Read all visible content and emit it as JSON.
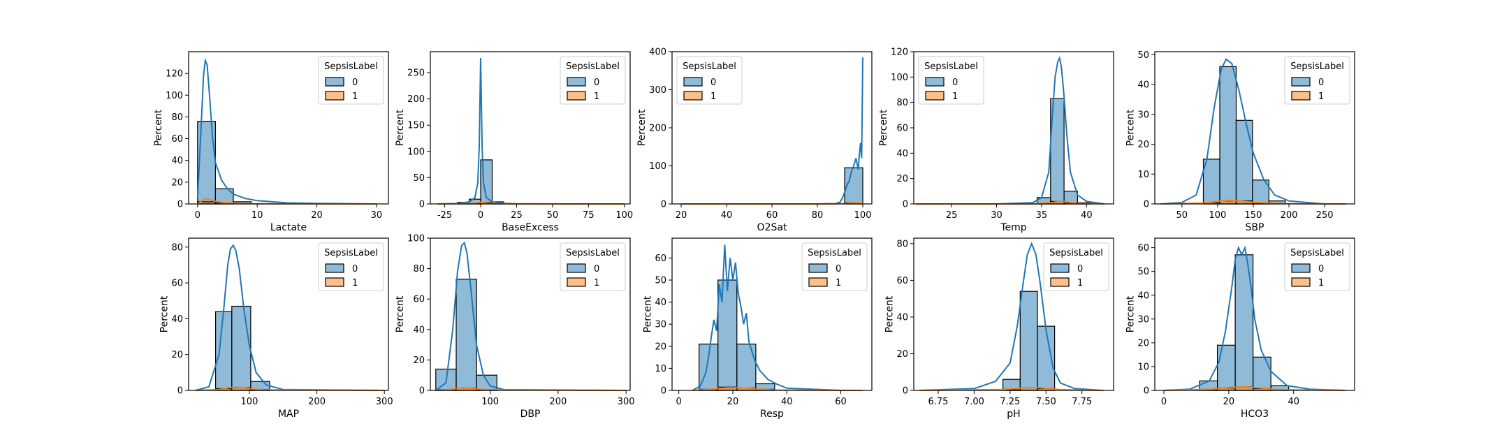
{
  "legend": {
    "title": "SepsisLabel",
    "entries": [
      "0",
      "1"
    ],
    "colors": [
      "#1f77b4",
      "#ff7f0e"
    ]
  },
  "chart_data": [
    {
      "type": "bar",
      "xlabel": "Lactate",
      "ylabel": "Percent",
      "xlim": [
        -1.5,
        32
      ],
      "ylim": [
        0,
        140
      ],
      "xticks": [
        0,
        10,
        20,
        30
      ],
      "yticks": [
        0,
        20,
        40,
        60,
        80,
        100,
        120
      ],
      "legend_position": "upper-right",
      "bins": [
        [
          0,
          3
        ],
        [
          3,
          6
        ],
        [
          6,
          9
        ]
      ],
      "series": [
        {
          "name": "0",
          "values": [
            76,
            14,
            2
          ]
        },
        {
          "name": "1",
          "values": [
            2,
            1,
            0
          ]
        }
      ],
      "kde": [
        {
          "series": "0",
          "x": [
            0,
            0.5,
            1,
            1.3,
            1.6,
            2,
            2.5,
            3,
            4,
            5,
            6,
            8,
            10,
            15,
            20,
            30
          ],
          "y": [
            5,
            60,
            118,
            132,
            128,
            100,
            62,
            38,
            22,
            14,
            9,
            5,
            3,
            1,
            0.5,
            0
          ]
        },
        {
          "series": "1",
          "x": [
            0,
            0.5,
            1,
            1.5,
            2,
            3,
            4,
            6,
            10,
            30
          ],
          "y": [
            0,
            2,
            4,
            5,
            4,
            2.5,
            1.5,
            0.7,
            0.2,
            0
          ]
        }
      ]
    },
    {
      "type": "bar",
      "xlabel": "BaseExcess",
      "ylabel": "Percent",
      "xlim": [
        -35,
        104
      ],
      "ylim": [
        0,
        290
      ],
      "xticks": [
        -25,
        0,
        25,
        50,
        75,
        100
      ],
      "yticks": [
        0,
        50,
        100,
        150,
        200,
        250
      ],
      "legend_position": "upper-right",
      "bins": [
        [
          -16,
          -8
        ],
        [
          -8,
          0
        ],
        [
          0,
          8
        ],
        [
          8,
          16
        ]
      ],
      "series": [
        {
          "name": "0",
          "values": [
            3,
            9,
            84,
            4
          ]
        },
        {
          "name": "1",
          "values": [
            0.5,
            1,
            3,
            1
          ]
        }
      ],
      "kde": [
        {
          "series": "0",
          "x": [
            -30,
            -15,
            -8,
            -4,
            -2,
            -1,
            0,
            1,
            2,
            4,
            8,
            15,
            25,
            50,
            100
          ],
          "y": [
            0,
            1,
            4,
            12,
            40,
            110,
            278,
            110,
            40,
            12,
            4,
            1,
            0.3,
            0,
            0
          ]
        },
        {
          "series": "1",
          "x": [
            -30,
            -10,
            -5,
            0,
            5,
            10,
            25,
            100
          ],
          "y": [
            0,
            0.5,
            1.5,
            3,
            1.5,
            0.5,
            0,
            0
          ]
        }
      ]
    },
    {
      "type": "bar",
      "xlabel": "O2Sat",
      "ylabel": "Percent",
      "xlim": [
        16,
        104
      ],
      "ylim": [
        0,
        400
      ],
      "xticks": [
        20,
        40,
        60,
        80,
        100
      ],
      "yticks": [
        0,
        100,
        200,
        300,
        400
      ],
      "legend_position": "upper-left",
      "bins": [
        [
          92,
          100
        ]
      ],
      "series": [
        {
          "name": "0",
          "values": [
            95
          ]
        },
        {
          "name": "1",
          "values": [
            3
          ]
        }
      ],
      "kde": [
        {
          "series": "0",
          "x": [
            20,
            80,
            88,
            90,
            91,
            92,
            93,
            94,
            95,
            96,
            97,
            98,
            98.5,
            99,
            99.5,
            100
          ],
          "y": [
            0,
            0,
            1,
            5,
            15,
            30,
            50,
            60,
            85,
            100,
            120,
            90,
            130,
            160,
            120,
            385
          ]
        },
        {
          "series": "1",
          "x": [
            20,
            85,
            92,
            96,
            100
          ],
          "y": [
            0,
            0,
            1,
            2.5,
            3
          ]
        }
      ]
    },
    {
      "type": "bar",
      "xlabel": "Temp",
      "ylabel": "Percent",
      "xlim": [
        20.8,
        43
      ],
      "ylim": [
        0,
        120
      ],
      "xticks": [
        25,
        30,
        35,
        40
      ],
      "yticks": [
        0,
        20,
        40,
        60,
        80,
        100,
        120
      ],
      "legend_position": "upper-left",
      "bins": [
        [
          34.5,
          36
        ],
        [
          36,
          37.5
        ],
        [
          37.5,
          39
        ],
        [
          39,
          40.5
        ]
      ],
      "series": [
        {
          "name": "0",
          "values": [
            5,
            83,
            10,
            1
          ]
        },
        {
          "name": "1",
          "values": [
            0.3,
            2,
            1,
            0.2
          ]
        }
      ],
      "kde": [
        {
          "series": "0",
          "x": [
            21,
            30,
            34,
            35,
            35.8,
            36.2,
            36.5,
            36.8,
            37,
            37.2,
            37.5,
            37.8,
            38.2,
            39,
            40,
            42
          ],
          "y": [
            0,
            0,
            1,
            5,
            25,
            70,
            100,
            112,
            115,
            108,
            85,
            55,
            25,
            7,
            2,
            0
          ]
        },
        {
          "series": "1",
          "x": [
            21,
            34,
            36,
            37,
            38,
            39,
            42
          ],
          "y": [
            0,
            0,
            1,
            2,
            1.5,
            0.5,
            0
          ]
        }
      ]
    },
    {
      "type": "bar",
      "xlabel": "SBP",
      "ylabel": "Percent",
      "xlim": [
        12,
        292
      ],
      "ylim": [
        0,
        51
      ],
      "xticks": [
        50,
        100,
        150,
        200,
        250
      ],
      "yticks": [
        0,
        10,
        20,
        30,
        40,
        50
      ],
      "legend_position": "upper-right",
      "bins": [
        [
          80,
          103
        ],
        [
          103,
          126
        ],
        [
          126,
          149
        ],
        [
          149,
          172
        ],
        [
          172,
          195
        ]
      ],
      "series": [
        {
          "name": "0",
          "values": [
            15,
            46,
            28,
            8,
            1
          ]
        },
        {
          "name": "1",
          "values": [
            0.5,
            1,
            1,
            0.3,
            0
          ]
        }
      ],
      "kde": [
        {
          "series": "0",
          "x": [
            20,
            50,
            70,
            85,
            95,
            105,
            112,
            120,
            130,
            140,
            150,
            165,
            180,
            200,
            250,
            280
          ],
          "y": [
            0,
            0.5,
            3,
            15,
            32,
            45,
            48.5,
            47,
            38,
            27,
            17,
            8,
            3,
            1,
            0,
            0
          ]
        },
        {
          "series": "1",
          "x": [
            20,
            80,
            100,
            115,
            130,
            150,
            200,
            280
          ],
          "y": [
            0,
            0.3,
            0.9,
            1.2,
            1,
            0.5,
            0.1,
            0
          ]
        }
      ]
    },
    {
      "type": "bar",
      "xlabel": "MAP",
      "ylabel": "Percent",
      "xlim": [
        10,
        306
      ],
      "ylim": [
        0,
        85
      ],
      "xticks": [
        100,
        200,
        300
      ],
      "yticks": [
        0,
        20,
        40,
        60,
        80
      ],
      "legend_position": "upper-right",
      "bins": [
        [
          50,
          74
        ],
        [
          74,
          102
        ],
        [
          102,
          130
        ]
      ],
      "series": [
        {
          "name": "0",
          "values": [
            44,
            47,
            5
          ]
        },
        {
          "name": "1",
          "values": [
            1,
            1.5,
            0.5
          ]
        }
      ],
      "kde": [
        {
          "series": "0",
          "x": [
            20,
            40,
            55,
            62,
            68,
            72,
            76,
            80,
            85,
            92,
            100,
            110,
            125,
            150,
            300
          ],
          "y": [
            0,
            2,
            20,
            45,
            70,
            79,
            81,
            78,
            68,
            45,
            25,
            10,
            3,
            0.5,
            0
          ]
        },
        {
          "series": "1",
          "x": [
            20,
            55,
            70,
            80,
            95,
            120,
            300
          ],
          "y": [
            0,
            0.5,
            1.5,
            1.8,
            1.2,
            0.3,
            0
          ]
        }
      ]
    },
    {
      "type": "bar",
      "xlabel": "DBP",
      "ylabel": "Percent",
      "xlim": [
        12,
        306
      ],
      "ylim": [
        0,
        100
      ],
      "xticks": [
        100,
        200,
        300
      ],
      "yticks": [
        0,
        20,
        40,
        60,
        80,
        100
      ],
      "legend_position": "upper-right",
      "bins": [
        [
          20,
          50
        ],
        [
          50,
          80
        ],
        [
          80,
          110
        ]
      ],
      "series": [
        {
          "name": "0",
          "values": [
            14,
            73,
            10
          ]
        },
        {
          "name": "1",
          "values": [
            0.5,
            1.5,
            0.5
          ]
        }
      ],
      "kde": [
        {
          "series": "0",
          "x": [
            20,
            35,
            45,
            52,
            58,
            62,
            66,
            72,
            80,
            90,
            100,
            120,
            300
          ],
          "y": [
            0,
            5,
            40,
            78,
            95,
            97,
            90,
            65,
            30,
            10,
            3,
            0.5,
            0
          ]
        },
        {
          "series": "1",
          "x": [
            20,
            45,
            60,
            75,
            100,
            300
          ],
          "y": [
            0,
            0.8,
            1.8,
            1.2,
            0.3,
            0
          ]
        }
      ]
    },
    {
      "type": "bar",
      "xlabel": "Resp",
      "ylabel": "Percent",
      "xlim": [
        -2.5,
        71.5
      ],
      "ylim": [
        0,
        69
      ],
      "xticks": [
        0,
        20,
        40,
        60
      ],
      "yticks": [
        0,
        10,
        20,
        30,
        40,
        50,
        60
      ],
      "legend_position": "upper-right",
      "bins": [
        [
          7.5,
          14.5
        ],
        [
          14.5,
          21.5
        ],
        [
          21.5,
          28.5
        ],
        [
          28.5,
          35.5
        ]
      ],
      "series": [
        {
          "name": "0",
          "values": [
            21,
            50,
            21,
            3
          ]
        },
        {
          "name": "1",
          "values": [
            0.5,
            1.5,
            1,
            0.5
          ]
        }
      ],
      "kde": [
        {
          "series": "0",
          "x": [
            5,
            8,
            10,
            11,
            12,
            13,
            14,
            15,
            16,
            17,
            18,
            19,
            20,
            21,
            22,
            23,
            24,
            25,
            26,
            28,
            30,
            33,
            36,
            40,
            50,
            60,
            68
          ],
          "y": [
            0,
            2,
            8,
            15,
            24,
            32,
            27,
            48,
            40,
            66,
            45,
            60,
            50,
            58,
            44,
            38,
            30,
            35,
            22,
            14,
            9,
            5,
            3,
            1,
            0.5,
            0,
            0
          ]
        },
        {
          "series": "1",
          "x": [
            5,
            12,
            18,
            22,
            28,
            35,
            68
          ],
          "y": [
            0,
            0.5,
            1.2,
            1.2,
            0.7,
            0.2,
            0
          ]
        }
      ]
    },
    {
      "type": "bar",
      "xlabel": "pH",
      "ylabel": "Percent",
      "xlim": [
        6.58,
        7.97
      ],
      "ylim": [
        0,
        83
      ],
      "xticks": [
        6.75,
        7.0,
        7.25,
        7.5,
        7.75
      ],
      "xtick_labels": [
        "6.75",
        "7.00",
        "7.25",
        "7.50",
        "7.75"
      ],
      "yticks": [
        0,
        20,
        40,
        60,
        80
      ],
      "legend_position": "upper-right",
      "bins": [
        [
          7.2,
          7.32
        ],
        [
          7.32,
          7.44
        ],
        [
          7.44,
          7.56
        ]
      ],
      "series": [
        {
          "name": "0",
          "values": [
            6,
            54,
            35
          ]
        },
        {
          "name": "1",
          "values": [
            0.3,
            1.5,
            1
          ]
        }
      ],
      "kde": [
        {
          "series": "0",
          "x": [
            6.62,
            7.0,
            7.15,
            7.25,
            7.3,
            7.34,
            7.37,
            7.4,
            7.43,
            7.46,
            7.5,
            7.55,
            7.6,
            7.7,
            7.9
          ],
          "y": [
            0,
            1,
            5,
            15,
            35,
            58,
            74,
            80,
            74,
            58,
            33,
            12,
            4,
            1,
            0
          ]
        },
        {
          "series": "1",
          "x": [
            6.62,
            7.2,
            7.35,
            7.45,
            7.6,
            7.9
          ],
          "y": [
            0,
            0.5,
            1.5,
            1.5,
            0.4,
            0
          ]
        }
      ]
    },
    {
      "type": "bar",
      "xlabel": "HCO3",
      "ylabel": "Percent",
      "xlim": [
        -2.8,
        58.8
      ],
      "ylim": [
        0,
        64
      ],
      "xticks": [
        0,
        20,
        40
      ],
      "yticks": [
        0,
        10,
        20,
        30,
        40,
        50,
        60
      ],
      "legend_position": "upper-right",
      "bins": [
        [
          11,
          16.5
        ],
        [
          16.5,
          22
        ],
        [
          22,
          27.5
        ],
        [
          27.5,
          33
        ],
        [
          33,
          38.5
        ]
      ],
      "series": [
        {
          "name": "0",
          "values": [
            4,
            19,
            57,
            14,
            2
          ]
        },
        {
          "name": "1",
          "values": [
            0.3,
            1,
            1.5,
            0.8,
            0.2
          ]
        }
      ],
      "kde": [
        {
          "series": "0",
          "x": [
            0,
            8,
            14,
            17,
            19,
            21,
            22,
            23,
            24,
            25,
            26,
            27,
            28,
            30,
            33,
            38,
            45,
            56
          ],
          "y": [
            0,
            0.5,
            4,
            12,
            25,
            44,
            55,
            60,
            57,
            60,
            52,
            42,
            30,
            17,
            8,
            2,
            0.5,
            0
          ]
        },
        {
          "series": "1",
          "x": [
            0,
            15,
            20,
            25,
            30,
            35,
            56
          ],
          "y": [
            0,
            0.5,
            1.2,
            1.5,
            1,
            0.3,
            0
          ]
        }
      ]
    }
  ]
}
